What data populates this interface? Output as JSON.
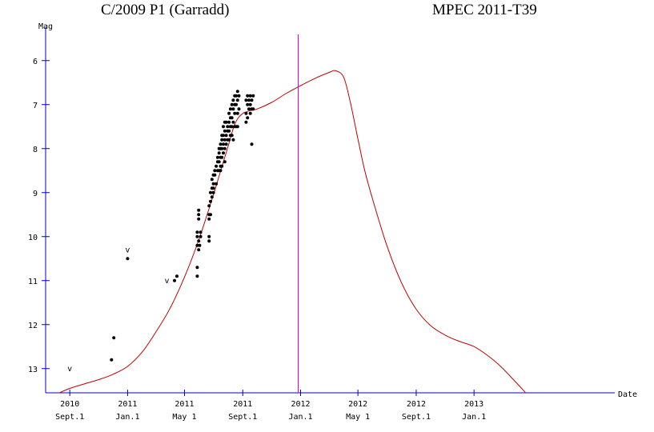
{
  "chart_data": {
    "type": "scatter",
    "title": "C/2009 P1 (Garradd)",
    "subtitle": "MPEC 2011-T39",
    "xlabel": "Date",
    "ylabel": "Mag",
    "y_inverted": true,
    "ylim": [
      13.55,
      5.35
    ],
    "xlim": [
      "2010-07-12",
      "2013-10-25"
    ],
    "y_ticks": [
      "6",
      "7",
      "8",
      "9",
      "10",
      "11",
      "12",
      "13"
    ],
    "x_ticks": [
      {
        "date": "2010-09-01",
        "year": "2010",
        "day": "Sept.1"
      },
      {
        "date": "2011-01-01",
        "year": "2011",
        "day": "Jan.1"
      },
      {
        "date": "2011-05-01",
        "year": "2011",
        "day": "May 1"
      },
      {
        "date": "2011-09-01",
        "year": "2011",
        "day": "Sept.1"
      },
      {
        "date": "2012-01-01",
        "year": "2012",
        "day": "Jan.1"
      },
      {
        "date": "2012-05-01",
        "year": "2012",
        "day": "May 1"
      },
      {
        "date": "2012-09-01",
        "year": "2012",
        "day": "Sept.1"
      },
      {
        "date": "2013-01-01",
        "year": "2013",
        "day": "Jan.1"
      }
    ],
    "vertical_marker": {
      "date": "2011-12-27",
      "color": "#cc00cc"
    },
    "observations": [
      [
        "2010-11-28",
        12.8
      ],
      [
        "2010-12-03",
        12.3
      ],
      [
        "2011-01-01",
        10.5
      ],
      [
        "2011-04-10",
        11.0
      ],
      [
        "2011-04-15",
        10.9
      ],
      [
        "2011-05-28",
        10.7
      ],
      [
        "2011-05-28",
        10.9
      ],
      [
        "2011-05-28",
        10.2
      ],
      [
        "2011-05-28",
        10.0
      ],
      [
        "2011-05-28",
        9.9
      ],
      [
        "2011-05-31",
        10.3
      ],
      [
        "2011-05-31",
        10.1
      ],
      [
        "2011-05-31",
        9.6
      ],
      [
        "2011-05-31",
        9.5
      ],
      [
        "2011-05-31",
        9.4
      ],
      [
        "2011-06-02",
        10.2
      ],
      [
        "2011-06-04",
        10.0
      ],
      [
        "2011-06-04",
        9.9
      ],
      [
        "2011-06-22",
        10.0
      ],
      [
        "2011-06-22",
        10.1
      ],
      [
        "2011-06-22",
        9.3
      ],
      [
        "2011-06-22",
        9.5
      ],
      [
        "2011-06-22",
        9.6
      ],
      [
        "2011-06-25",
        9.2
      ],
      [
        "2011-06-25",
        9.5
      ],
      [
        "2011-06-25",
        9.0
      ],
      [
        "2011-06-28",
        8.9
      ],
      [
        "2011-06-28",
        9.1
      ],
      [
        "2011-06-28",
        8.7
      ],
      [
        "2011-07-01",
        8.8
      ],
      [
        "2011-07-01",
        8.9
      ],
      [
        "2011-07-01",
        9.0
      ],
      [
        "2011-07-01",
        8.6
      ],
      [
        "2011-07-04",
        8.6
      ],
      [
        "2011-07-04",
        8.5
      ],
      [
        "2011-07-07",
        8.4
      ],
      [
        "2011-07-07",
        8.8
      ],
      [
        "2011-07-10",
        8.2
      ],
      [
        "2011-07-10",
        8.3
      ],
      [
        "2011-07-10",
        8.5
      ],
      [
        "2011-07-13",
        8.0
      ],
      [
        "2011-07-13",
        8.1
      ],
      [
        "2011-07-13",
        8.3
      ],
      [
        "2011-07-13",
        8.5
      ],
      [
        "2011-07-16",
        7.9
      ],
      [
        "2011-07-16",
        8.0
      ],
      [
        "2011-07-16",
        8.2
      ],
      [
        "2011-07-16",
        8.4
      ],
      [
        "2011-07-16",
        8.5
      ],
      [
        "2011-07-19",
        7.7
      ],
      [
        "2011-07-19",
        7.8
      ],
      [
        "2011-07-19",
        8.0
      ],
      [
        "2011-07-19",
        8.2
      ],
      [
        "2011-07-19",
        8.4
      ],
      [
        "2011-07-22",
        7.5
      ],
      [
        "2011-07-22",
        7.7
      ],
      [
        "2011-07-22",
        7.9
      ],
      [
        "2011-07-22",
        8.1
      ],
      [
        "2011-07-25",
        7.4
      ],
      [
        "2011-07-25",
        7.6
      ],
      [
        "2011-07-25",
        7.8
      ],
      [
        "2011-07-25",
        8.0
      ],
      [
        "2011-07-25",
        8.3
      ],
      [
        "2011-07-28",
        7.4
      ],
      [
        "2011-07-28",
        7.7
      ],
      [
        "2011-07-28",
        7.9
      ],
      [
        "2011-07-31",
        7.5
      ],
      [
        "2011-07-31",
        7.6
      ],
      [
        "2011-07-31",
        7.8
      ],
      [
        "2011-08-03",
        7.2
      ],
      [
        "2011-08-03",
        7.4
      ],
      [
        "2011-08-03",
        7.6
      ],
      [
        "2011-08-03",
        7.8
      ],
      [
        "2011-08-06",
        7.1
      ],
      [
        "2011-08-06",
        7.3
      ],
      [
        "2011-08-06",
        7.5
      ],
      [
        "2011-08-06",
        7.7
      ],
      [
        "2011-08-09",
        7.0
      ],
      [
        "2011-08-09",
        7.3
      ],
      [
        "2011-08-09",
        7.5
      ],
      [
        "2011-08-09",
        7.7
      ],
      [
        "2011-08-12",
        6.9
      ],
      [
        "2011-08-12",
        7.1
      ],
      [
        "2011-08-12",
        7.4
      ],
      [
        "2011-08-12",
        7.8
      ],
      [
        "2011-08-15",
        6.8
      ],
      [
        "2011-08-15",
        7.0
      ],
      [
        "2011-08-15",
        7.2
      ],
      [
        "2011-08-15",
        7.5
      ],
      [
        "2011-08-18",
        6.8
      ],
      [
        "2011-08-18",
        7.0
      ],
      [
        "2011-08-18",
        7.5
      ],
      [
        "2011-08-21",
        6.7
      ],
      [
        "2011-08-21",
        6.9
      ],
      [
        "2011-08-21",
        7.2
      ],
      [
        "2011-08-21",
        7.5
      ],
      [
        "2011-08-24",
        6.8
      ],
      [
        "2011-08-24",
        7.1
      ],
      [
        "2011-09-08",
        6.9
      ],
      [
        "2011-09-08",
        7.2
      ],
      [
        "2011-09-08",
        7.4
      ],
      [
        "2011-09-11",
        6.8
      ],
      [
        "2011-09-11",
        7.0
      ],
      [
        "2011-09-11",
        7.3
      ],
      [
        "2011-09-14",
        6.9
      ],
      [
        "2011-09-14",
        7.1
      ],
      [
        "2011-09-17",
        6.8
      ],
      [
        "2011-09-17",
        7.0
      ],
      [
        "2011-09-17",
        7.2
      ],
      [
        "2011-09-20",
        6.9
      ],
      [
        "2011-09-20",
        7.1
      ],
      [
        "2011-09-20",
        7.9
      ],
      [
        "2011-09-23",
        6.8
      ],
      [
        "2011-09-23",
        7.1
      ]
    ],
    "upper_limits": [
      {
        "date": "2010-09-01",
        "mag": 13.0,
        "label": "v"
      },
      {
        "date": "2011-01-01",
        "mag": 10.3,
        "label": "v"
      },
      {
        "date": "2011-03-25",
        "mag": 11.0,
        "label": "v"
      }
    ],
    "model_curve": {
      "color": "#c00000",
      "points": [
        [
          "2010-08-10",
          13.55
        ],
        [
          "2010-09-01",
          13.45
        ],
        [
          "2010-10-01",
          13.35
        ],
        [
          "2010-11-01",
          13.25
        ],
        [
          "2010-12-01",
          13.13
        ],
        [
          "2011-01-01",
          12.95
        ],
        [
          "2011-02-01",
          12.62
        ],
        [
          "2011-03-01",
          12.18
        ],
        [
          "2011-04-01",
          11.62
        ],
        [
          "2011-05-01",
          10.92
        ],
        [
          "2011-06-01",
          10.05
        ],
        [
          "2011-07-01",
          9.05
        ],
        [
          "2011-07-15",
          8.55
        ],
        [
          "2011-08-01",
          7.95
        ],
        [
          "2011-08-15",
          7.45
        ],
        [
          "2011-09-01",
          7.2
        ],
        [
          "2011-10-01",
          7.1
        ],
        [
          "2011-11-01",
          6.95
        ],
        [
          "2011-12-01",
          6.75
        ],
        [
          "2012-01-01",
          6.57
        ],
        [
          "2012-02-01",
          6.4
        ],
        [
          "2012-03-01",
          6.27
        ],
        [
          "2012-03-15",
          6.23
        ],
        [
          "2012-04-01",
          6.38
        ],
        [
          "2012-04-15",
          6.95
        ],
        [
          "2012-05-01",
          7.78
        ],
        [
          "2012-05-15",
          8.48
        ],
        [
          "2012-06-01",
          9.15
        ],
        [
          "2012-07-01",
          10.2
        ],
        [
          "2012-08-01",
          11.05
        ],
        [
          "2012-09-01",
          11.65
        ],
        [
          "2012-10-01",
          12.02
        ],
        [
          "2012-11-01",
          12.24
        ],
        [
          "2012-12-01",
          12.38
        ],
        [
          "2013-01-01",
          12.5
        ],
        [
          "2013-02-01",
          12.72
        ],
        [
          "2013-03-01",
          12.98
        ],
        [
          "2013-04-01",
          13.33
        ],
        [
          "2013-04-20",
          13.55
        ]
      ]
    }
  }
}
